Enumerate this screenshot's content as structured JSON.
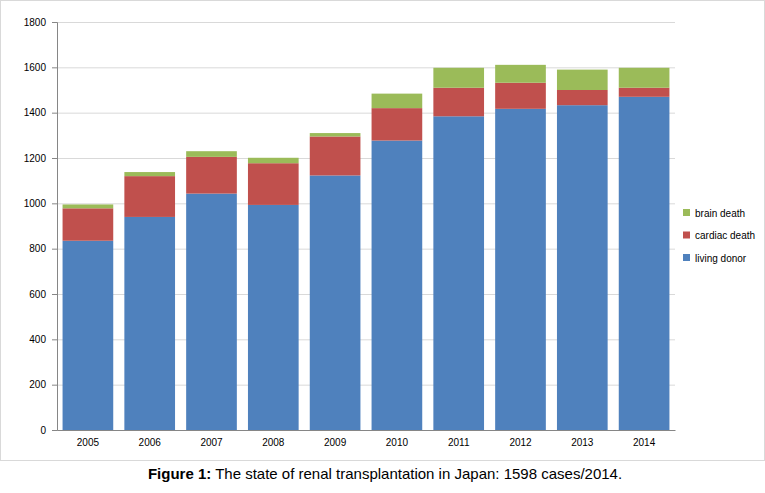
{
  "chart_data": {
    "type": "bar",
    "stacked": true,
    "grid": true,
    "legend": "right",
    "title": "Figure 1: The state of renal transplantation in Japan: 1598 cases/2014.",
    "categories": [
      "2005",
      "2006",
      "2007",
      "2008",
      "2009",
      "2010",
      "2011",
      "2012",
      "2013",
      "2014"
    ],
    "series": [
      {
        "name": "living donor",
        "color": "#4f81bd",
        "values": [
          835,
          940,
          1043,
          993,
          1123,
          1277,
          1384,
          1417,
          1433,
          1470
        ]
      },
      {
        "name": "cardiac death",
        "color": "#c0504d",
        "values": [
          143,
          180,
          162,
          184,
          172,
          143,
          126,
          115,
          67,
          40
        ]
      },
      {
        "name": "brain death",
        "color": "#9bbb59",
        "values": [
          17,
          18,
          25,
          24,
          15,
          64,
          88,
          79,
          90,
          88
        ]
      }
    ],
    "ylim": [
      0,
      1800
    ],
    "yticks": [
      0,
      200,
      400,
      600,
      800,
      1000,
      1200,
      1400,
      1600,
      1800
    ]
  }
}
